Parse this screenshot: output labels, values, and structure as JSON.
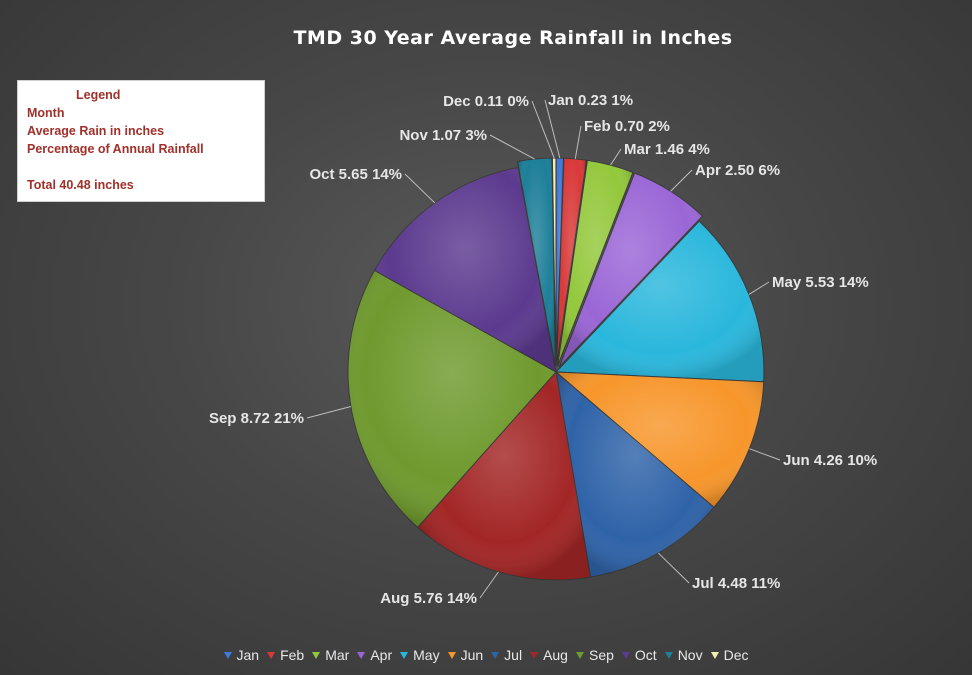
{
  "chart_data": {
    "type": "pie",
    "title": "TMD 30 Year Average Rainfall in Inches",
    "categories": [
      "Jan",
      "Feb",
      "Mar",
      "Apr",
      "May",
      "Jun",
      "Jul",
      "Aug",
      "Sep",
      "Oct",
      "Nov",
      "Dec"
    ],
    "values": [
      0.23,
      0.7,
      1.46,
      2.5,
      5.53,
      4.26,
      4.48,
      5.76,
      8.72,
      5.65,
      1.07,
      0.11
    ],
    "percent_labels": [
      "1%",
      "2%",
      "4%",
      "6%",
      "14%",
      "10%",
      "11%",
      "14%",
      "21%",
      "14%",
      "3%",
      "0%"
    ],
    "value_labels": [
      "0.23",
      "0.70",
      "1.46",
      "2.50",
      "5.53",
      "4.26",
      "4.48",
      "5.76",
      "8.72",
      "5.65",
      "1.07",
      "0.11"
    ],
    "colors": [
      "#3f78d8",
      "#d93838",
      "#93c83b",
      "#9a66d6",
      "#2ab7dc",
      "#f7962b",
      "#2f63a8",
      "#a32626",
      "#6f9a2e",
      "#5c3a8f",
      "#1d7f99",
      "#f5f0b0"
    ],
    "legend_position": "bottom"
  },
  "legend_box": {
    "heading": "Legend",
    "line1": "Month",
    "line2": "Average Rain in inches",
    "line3": "Percentage of Annual Rainfall",
    "total": "Total  40.48 inches"
  }
}
